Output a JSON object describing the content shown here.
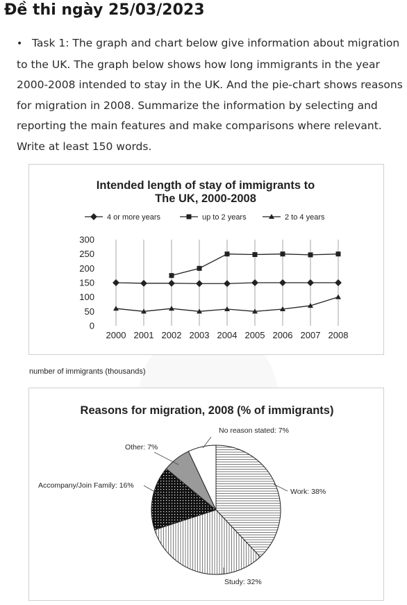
{
  "page": {
    "title": "Đề thi ngày 25/03/2023",
    "bullet": "•",
    "task_text": "Task 1: The graph and chart below give information about migration to the UK. The graph below shows how long immigrants in the year 2000-2008 intended to stay in the UK. And the pie-chart shows reasons for migration in 2008. Summarize the information by selecting and reporting the main features and make comparisons where relevant. Write at least 150 words.",
    "caption": "number of immigrants (thousands)"
  },
  "chart_data": [
    {
      "type": "line",
      "title_line1": "Intended length of stay of immigrants to",
      "title_line2": "The UK, 2000-2008",
      "categories": [
        "2000",
        "2001",
        "2002",
        "2003",
        "2004",
        "2005",
        "2006",
        "2007",
        "2008"
      ],
      "ylim": [
        0,
        300
      ],
      "yticks": [
        "0",
        "50",
        "100",
        "150",
        "200",
        "250",
        "300"
      ],
      "ytick_values": [
        0,
        50,
        100,
        150,
        200,
        250,
        300
      ],
      "ylabel": "number of immigrants (thousands)",
      "series": [
        {
          "name": "4 or more years",
          "marker": "diamond",
          "values": [
            150,
            148,
            148,
            147,
            147,
            150,
            150,
            150,
            150
          ]
        },
        {
          "name": "up to 2 years",
          "marker": "square",
          "values": [
            null,
            null,
            175,
            200,
            250,
            248,
            250,
            247,
            250
          ]
        },
        {
          "name": "2 to 4 years",
          "marker": "triangle",
          "values": [
            60,
            50,
            60,
            50,
            58,
            50,
            58,
            70,
            100
          ]
        }
      ]
    },
    {
      "type": "pie",
      "title": "Reasons for migration, 2008 (% of immigrants)",
      "slices": [
        {
          "label": "Work: 38%",
          "value": 38,
          "fill": "hlines"
        },
        {
          "label": "Study: 32%",
          "value": 32,
          "fill": "vlines"
        },
        {
          "label": "Accompany/Join Family: 16%",
          "value": 16,
          "fill": "dots"
        },
        {
          "label": "Other: 7%",
          "value": 7,
          "fill": "gray"
        },
        {
          "label": "No reason stated: 7%",
          "value": 7,
          "fill": "white"
        }
      ]
    }
  ]
}
